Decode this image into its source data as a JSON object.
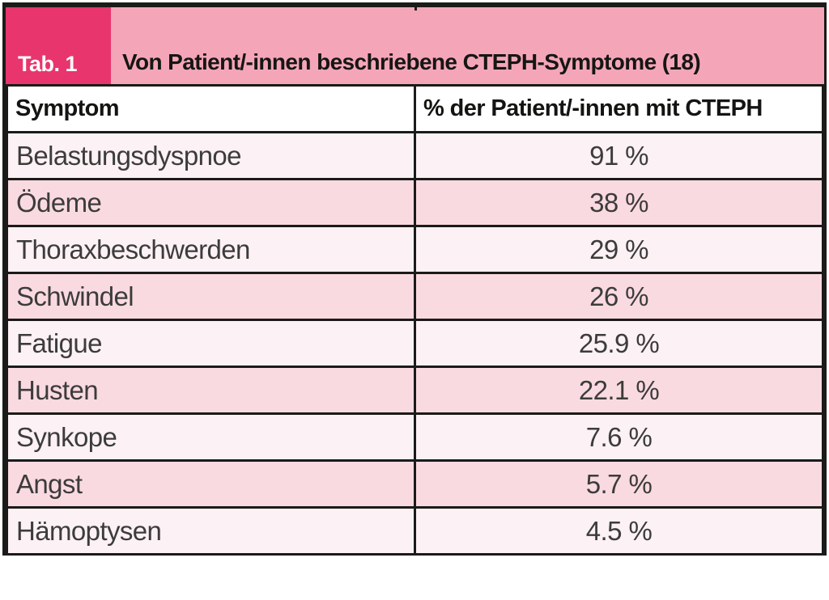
{
  "figure": {
    "tab_label": "Tab. 1",
    "title": "Von Patient/-innen beschriebene CTEPH-Symptome (18)"
  },
  "table": {
    "columns": [
      "Symptom",
      "% der Patient/-innen mit CTEPH"
    ],
    "rows": [
      {
        "symptom": "Belastungsdyspnoe",
        "value": "91 %"
      },
      {
        "symptom": "Ödeme",
        "value": "38 %"
      },
      {
        "symptom": "Thoraxbeschwerden",
        "value": "29 %"
      },
      {
        "symptom": "Schwindel",
        "value": "26 %"
      },
      {
        "symptom": "Fatigue",
        "value": "25.9 %"
      },
      {
        "symptom": "Husten",
        "value": "22.1 %"
      },
      {
        "symptom": "Synkope",
        "value": "7.6 %"
      },
      {
        "symptom": "Angst",
        "value": "5.7 %"
      },
      {
        "symptom": "Hämoptysen",
        "value": "4.5 %"
      }
    ]
  },
  "colors": {
    "accent_magenta": "#e8356d",
    "band_pink": "#f4a6b8",
    "row_light": "#fcf1f4",
    "row_dark": "#fadae1",
    "border_black": "#1b1b19"
  },
  "chart_data": {
    "type": "table",
    "title": "Von Patient/-innen beschriebene CTEPH-Symptome (18)",
    "columns": [
      "Symptom",
      "% der Patient/-innen mit CTEPH"
    ],
    "categories": [
      "Belastungsdyspnoe",
      "Ödeme",
      "Thoraxbeschwerden",
      "Schwindel",
      "Fatigue",
      "Husten",
      "Synkope",
      "Angst",
      "Hämoptysen"
    ],
    "values": [
      91,
      38,
      29,
      26,
      25.9,
      22.1,
      7.6,
      5.7,
      4.5
    ],
    "unit": "%"
  }
}
